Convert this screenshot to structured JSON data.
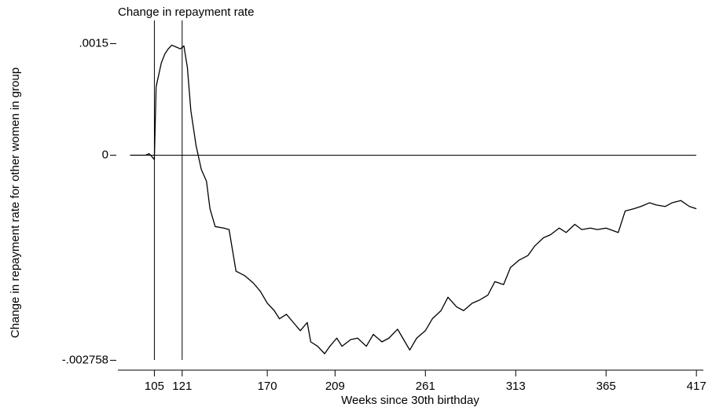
{
  "chart_data": {
    "type": "line",
    "title": "Change in repayment rate",
    "xlabel": "Weeks since 30th birthday",
    "ylabel": "Change in repayment rate for other women in group",
    "x": [
      91,
      100,
      102,
      104,
      105,
      106,
      109,
      111,
      113,
      115,
      118,
      120,
      122,
      124,
      126,
      129,
      132,
      135,
      137,
      140,
      145,
      148,
      152,
      157,
      162,
      166,
      170,
      174,
      177,
      181,
      185,
      189,
      193,
      195,
      199,
      203,
      206,
      210,
      213,
      218,
      222,
      227,
      231,
      236,
      240,
      245,
      248,
      252,
      256,
      261,
      265,
      270,
      274,
      279,
      283,
      288,
      292,
      297,
      301,
      306,
      310,
      315,
      320,
      324,
      329,
      333,
      338,
      342,
      347,
      351,
      356,
      360,
      365,
      372,
      376,
      381,
      385,
      390,
      394,
      399,
      403,
      408,
      413,
      417
    ],
    "series": [
      {
        "name": null,
        "color": "#000000",
        "values": [
          0,
          0,
          2e-05,
          -3e-05,
          -6e-05,
          0.00092,
          0.00124,
          0.00136,
          0.00143,
          0.00148,
          0.00145,
          0.00143,
          0.00147,
          0.00118,
          0.0006,
          0.00013,
          -0.00019,
          -0.00035,
          -0.00072,
          -0.00096,
          -0.00098,
          -0.001,
          -0.00156,
          -0.00162,
          -0.00172,
          -0.00183,
          -0.00199,
          -0.00209,
          -0.0022,
          -0.00214,
          -0.00225,
          -0.00236,
          -0.00225,
          -0.00251,
          -0.00257,
          -0.00267,
          -0.00257,
          -0.00246,
          -0.00257,
          -0.00248,
          -0.00246,
          -0.00257,
          -0.00241,
          -0.00251,
          -0.00246,
          -0.00234,
          -0.00246,
          -0.00262,
          -0.00246,
          -0.00236,
          -0.0022,
          -0.00209,
          -0.00191,
          -0.00204,
          -0.00209,
          -0.00199,
          -0.00195,
          -0.00188,
          -0.0017,
          -0.00174,
          -0.00151,
          -0.00141,
          -0.00135,
          -0.00122,
          -0.00111,
          -0.00107,
          -0.00098,
          -0.00104,
          -0.00093,
          -0.001,
          -0.00098,
          -0.001,
          -0.00098,
          -0.00104,
          -0.00075,
          -0.00072,
          -0.00069,
          -0.00064,
          -0.00067,
          -0.00069,
          -0.00064,
          -0.00061,
          -0.00069,
          -0.00072
        ]
      }
    ],
    "xlim": [
      84,
      421
    ],
    "xticks": [
      105,
      121,
      170,
      209,
      261,
      313,
      365,
      417
    ],
    "ylim": [
      -0.00288,
      0.00177
    ],
    "yticks": [
      {
        "value": -0.002758,
        "label": "-.002758"
      },
      0,
      {
        "value": 0.0015,
        "label": ".0015"
      }
    ],
    "xlines": [
      105,
      121
    ],
    "ylines": [
      0
    ]
  }
}
